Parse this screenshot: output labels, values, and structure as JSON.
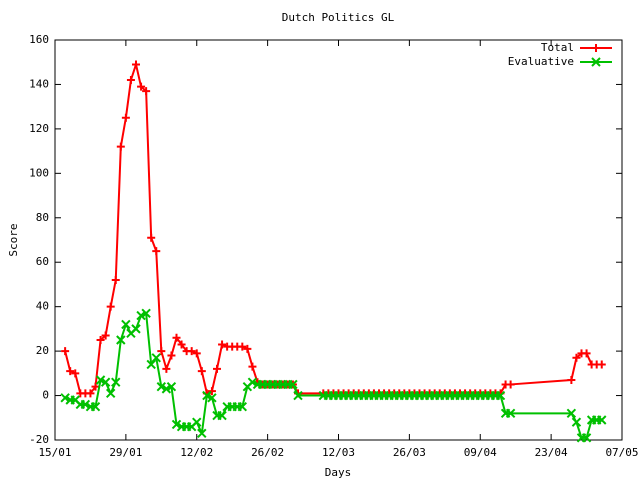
{
  "chart_data": {
    "type": "line",
    "title": "Dutch Politics GL",
    "xlabel": "Days",
    "ylabel": "Score",
    "xlim": [
      "15/01",
      "07/05"
    ],
    "xticks": [
      "15/01",
      "29/01",
      "12/02",
      "26/02",
      "12/03",
      "26/03",
      "09/04",
      "23/04",
      "07/05"
    ],
    "ylim": [
      -20,
      160
    ],
    "yticks": [
      -20,
      0,
      20,
      40,
      60,
      80,
      100,
      120,
      140,
      160
    ],
    "legend": "top-right",
    "x": [
      "17/01",
      "18/01",
      "19/01",
      "20/01",
      "21/01",
      "22/01",
      "23/01",
      "24/01",
      "25/01",
      "26/01",
      "27/01",
      "28/01",
      "29/01",
      "30/01",
      "31/01",
      "01/02",
      "02/02",
      "03/02",
      "04/02",
      "05/02",
      "06/02",
      "07/02",
      "08/02",
      "09/02",
      "10/02",
      "11/02",
      "12/02",
      "13/02",
      "14/02",
      "15/02",
      "16/02",
      "17/02",
      "18/02",
      "19/02",
      "20/02",
      "21/02",
      "22/02",
      "23/02",
      "24/02",
      "25/02",
      "26/02",
      "27/02",
      "28/02",
      "01/03",
      "02/03",
      "03/03",
      "04/03",
      "09/03",
      "10/03",
      "11/03",
      "12/03",
      "13/03",
      "14/03",
      "15/03",
      "16/03",
      "17/03",
      "18/03",
      "19/03",
      "20/03",
      "21/03",
      "22/03",
      "23/03",
      "24/03",
      "25/03",
      "26/03",
      "27/03",
      "28/03",
      "29/03",
      "30/03",
      "31/03",
      "01/04",
      "02/04",
      "03/04",
      "04/04",
      "05/04",
      "06/04",
      "07/04",
      "08/04",
      "09/04",
      "10/04",
      "11/04",
      "12/04",
      "13/04",
      "14/04",
      "15/04",
      "27/04",
      "28/04",
      "29/04",
      "30/04",
      "01/05",
      "02/05",
      "03/05"
    ],
    "series": [
      {
        "name": "Total",
        "color": "#ff0000",
        "marker": "plus",
        "values": [
          20,
          11,
          10,
          1,
          1,
          1,
          4,
          25,
          27,
          40,
          52,
          112,
          125,
          142,
          149,
          139,
          137,
          71,
          65,
          20,
          12,
          18,
          26,
          23,
          20,
          20,
          19,
          11,
          1,
          2,
          12,
          23,
          22,
          22,
          22,
          22,
          21,
          13,
          6,
          5,
          5,
          5,
          5,
          5,
          5,
          5,
          1,
          1,
          1,
          1,
          1,
          1,
          1,
          1,
          1,
          1,
          1,
          1,
          1,
          1,
          1,
          1,
          1,
          1,
          1,
          1,
          1,
          1,
          1,
          1,
          1,
          1,
          1,
          1,
          1,
          1,
          1,
          1,
          1,
          1,
          1,
          1,
          1,
          5,
          5,
          7,
          17,
          19,
          19,
          14,
          14,
          14
        ]
      },
      {
        "name": "Evaluative",
        "color": "#00c000",
        "marker": "cross",
        "values": [
          -1,
          -2,
          -2,
          -4,
          -4,
          -5,
          -5,
          7,
          6,
          1,
          6,
          25,
          32,
          28,
          30,
          36,
          37,
          14,
          17,
          4,
          3,
          4,
          -13,
          -14,
          -14,
          -14,
          -12,
          -17,
          0,
          -1,
          -9,
          -9,
          -5,
          -5,
          -5,
          -5,
          4,
          6,
          5,
          5,
          5,
          5,
          5,
          5,
          5,
          5,
          0,
          0,
          0,
          0,
          0,
          0,
          0,
          0,
          0,
          0,
          0,
          0,
          0,
          0,
          0,
          0,
          0,
          0,
          0,
          0,
          0,
          0,
          0,
          0,
          0,
          0,
          0,
          0,
          0,
          0,
          0,
          0,
          0,
          0,
          0,
          0,
          0,
          -8,
          -8,
          -8,
          -12,
          -19,
          -19,
          -11,
          -11,
          -11
        ]
      }
    ]
  }
}
